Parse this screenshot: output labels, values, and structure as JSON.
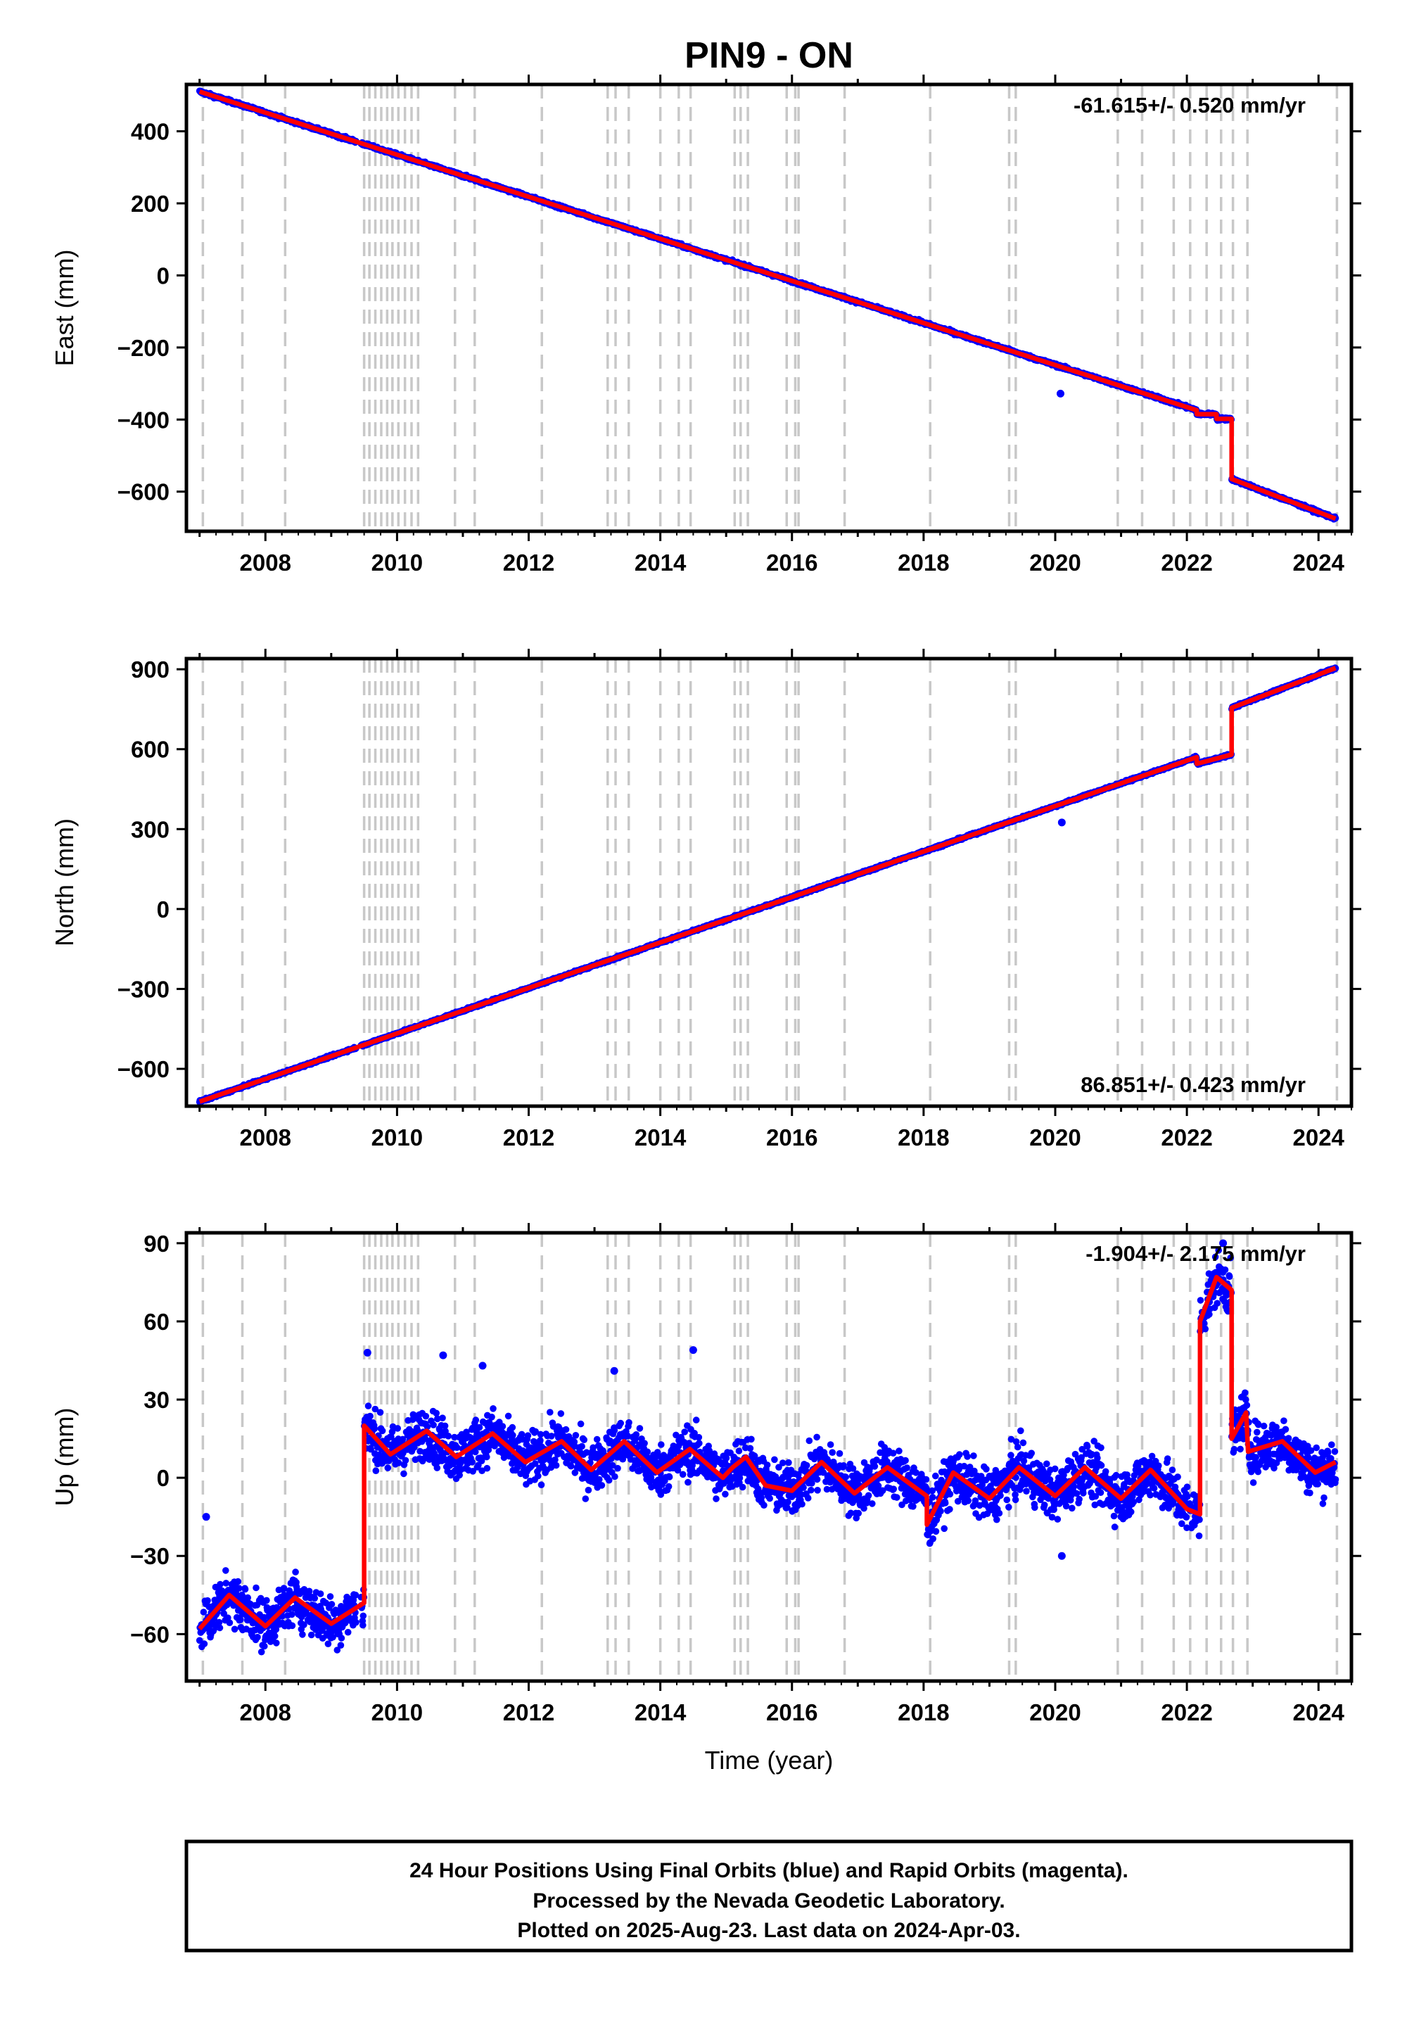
{
  "title": "PIN9 - ON",
  "footer": {
    "line1": "24 Hour Positions Using Final Orbits (blue) and Rapid Orbits (magenta).",
    "line2": "Processed by the Nevada Geodetic Laboratory.",
    "line3": "Plotted on 2025-Aug-23. Last data on 2024-Apr-03."
  },
  "colors": {
    "data": "#0000ff",
    "model": "#ff0000",
    "event": "#c8c8c8"
  },
  "chart_data": [
    {
      "type": "scatter",
      "ylabel": "East (mm)",
      "xlabel": "",
      "xlim": [
        2006.8,
        2024.5
      ],
      "ylim": [
        -710,
        530
      ],
      "x_ticks": [
        "2008",
        "2010",
        "2012",
        "2014",
        "2016",
        "2018",
        "2020",
        "2022",
        "2024"
      ],
      "y_ticks": [
        400,
        200,
        0,
        -200,
        -400,
        -600
      ],
      "rate_text": "-61.615+/- 0.520 mm/yr",
      "rate_position": "top-right",
      "model_points": [
        [
          2007.0,
          510
        ],
        [
          2022.68,
          -405
        ],
        [
          2022.68,
          -565
        ],
        [
          2024.26,
          -675
        ]
      ],
      "offset_segments": [
        [
          2022.15,
          2022.45,
          -385
        ],
        [
          2022.45,
          2022.68,
          -398
        ]
      ],
      "outliers": [
        [
          2020.08,
          -328
        ]
      ],
      "noise_mm": 3
    },
    {
      "type": "scatter",
      "ylabel": "North (mm)",
      "xlabel": "",
      "xlim": [
        2006.8,
        2024.5
      ],
      "ylim": [
        -740,
        940
      ],
      "x_ticks": [
        "2008",
        "2010",
        "2012",
        "2014",
        "2016",
        "2018",
        "2020",
        "2022",
        "2024"
      ],
      "y_ticks": [
        900,
        600,
        300,
        0,
        -300,
        -600
      ],
      "rate_text": "86.851+/- 0.423 mm/yr",
      "rate_position": "bottom-right",
      "model_points": [
        [
          2007.0,
          -723
        ],
        [
          2022.15,
          570
        ],
        [
          2022.15,
          545
        ],
        [
          2022.68,
          580
        ],
        [
          2022.68,
          755
        ],
        [
          2024.26,
          905
        ]
      ],
      "offset_segments": [],
      "outliers": [
        [
          2020.1,
          325
        ]
      ],
      "noise_mm": 3
    },
    {
      "type": "scatter",
      "ylabel": "Up (mm)",
      "xlabel": "Time (year)",
      "xlim": [
        2006.8,
        2024.5
      ],
      "ylim": [
        -78,
        94
      ],
      "x_ticks": [
        "2008",
        "2010",
        "2012",
        "2014",
        "2016",
        "2018",
        "2020",
        "2022",
        "2024"
      ],
      "y_ticks": [
        90,
        60,
        30,
        0,
        -30,
        -60
      ],
      "rate_text": "-1.904+/- 2.175 mm/yr",
      "rate_position": "top-right",
      "model_points": [
        [
          2007.0,
          -58
        ],
        [
          2007.45,
          -45
        ],
        [
          2008.0,
          -57
        ],
        [
          2008.45,
          -46
        ],
        [
          2009.0,
          -56
        ],
        [
          2009.5,
          -48
        ],
        [
          2009.5,
          20
        ],
        [
          2009.9,
          9
        ],
        [
          2010.45,
          18
        ],
        [
          2010.9,
          8
        ],
        [
          2011.45,
          17
        ],
        [
          2011.95,
          6
        ],
        [
          2012.5,
          14
        ],
        [
          2012.95,
          3
        ],
        [
          2013.45,
          14
        ],
        [
          2013.95,
          2
        ],
        [
          2014.45,
          11
        ],
        [
          2014.95,
          0
        ],
        [
          2015.1,
          4
        ],
        [
          2015.3,
          8
        ],
        [
          2015.6,
          -3
        ],
        [
          2016.0,
          -5
        ],
        [
          2016.45,
          6
        ],
        [
          2016.95,
          -6
        ],
        [
          2017.45,
          4
        ],
        [
          2018.05,
          -7
        ],
        [
          2018.05,
          -18
        ],
        [
          2018.45,
          2
        ],
        [
          2019.0,
          -8
        ],
        [
          2019.45,
          4
        ],
        [
          2020.0,
          -7
        ],
        [
          2020.45,
          4
        ],
        [
          2021.0,
          -8
        ],
        [
          2021.45,
          3
        ],
        [
          2022.0,
          -12
        ],
        [
          2022.2,
          -14
        ],
        [
          2022.2,
          60
        ],
        [
          2022.45,
          77
        ],
        [
          2022.68,
          72
        ],
        [
          2022.68,
          15
        ],
        [
          2022.9,
          25
        ],
        [
          2022.93,
          10
        ],
        [
          2023.45,
          14
        ],
        [
          2023.95,
          2
        ],
        [
          2024.26,
          6
        ]
      ],
      "offset_segments": [],
      "outliers": [
        [
          2007.1,
          -15
        ],
        [
          2009.55,
          48
        ],
        [
          2010.7,
          47
        ],
        [
          2011.3,
          43
        ],
        [
          2013.3,
          41
        ],
        [
          2014.5,
          49
        ],
        [
          2020.1,
          -30
        ],
        [
          2022.55,
          90
        ]
      ],
      "noise_mm": 7
    }
  ],
  "event_lines": [
    2007.05,
    2007.65,
    2008.3,
    2009.5,
    2009.58,
    2009.67,
    2009.76,
    2009.85,
    2009.93,
    2010.02,
    2010.12,
    2010.22,
    2010.32,
    2010.88,
    2011.18,
    2012.2,
    2013.2,
    2013.32,
    2013.52,
    2014.0,
    2014.28,
    2014.46,
    2015.13,
    2015.22,
    2015.33,
    2015.92,
    2016.05,
    2016.1,
    2016.8,
    2018.1,
    2019.3,
    2019.4,
    2020.95,
    2021.32,
    2021.8,
    2022.05,
    2022.3,
    2022.52,
    2022.7,
    2022.92,
    2024.28
  ]
}
